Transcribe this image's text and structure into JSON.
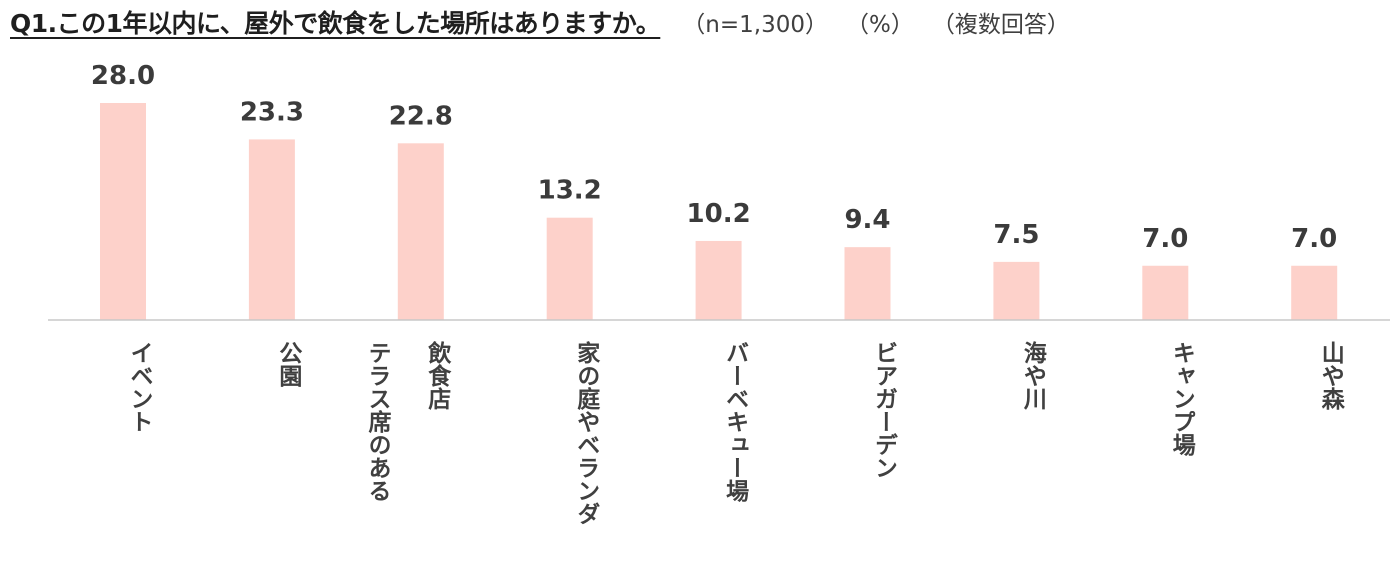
{
  "header": {
    "title": "Q1.この1年以内に、屋外で飲食をした場所はありますか。",
    "sample": "（n=1,300）",
    "unit": "（%）",
    "note": "（複数回答）"
  },
  "colors": {
    "bar": "#fdd1ca",
    "axis": "#c8c8c8",
    "label": "#3b3b3b"
  },
  "chart_data": {
    "type": "bar",
    "categories": [
      "イベント",
      "公園",
      "テラス席のある飲食店",
      "家の庭やベランダ",
      "バーベキュー場",
      "ビアガーデン",
      "海や川",
      "キャンプ場",
      "山や森"
    ],
    "category_lines": [
      [
        "イベント"
      ],
      [
        "公園"
      ],
      [
        "テラス席のある",
        "飲食店"
      ],
      [
        "家の庭やベランダ"
      ],
      [
        "バーベキュー場"
      ],
      [
        "ビアガーデン"
      ],
      [
        "海や川"
      ],
      [
        "キャンプ場"
      ],
      [
        "山や森"
      ]
    ],
    "values": [
      28.0,
      23.3,
      22.8,
      13.2,
      10.2,
      9.4,
      7.5,
      7.0,
      7.0
    ],
    "value_labels": [
      "28.0",
      "23.3",
      "22.8",
      "13.2",
      "10.2",
      "9.4",
      "7.5",
      "7.0",
      "7.0"
    ],
    "title": "",
    "xlabel": "",
    "ylabel": "",
    "ylim": [
      0,
      28
    ],
    "grid": false,
    "legend": "none"
  }
}
